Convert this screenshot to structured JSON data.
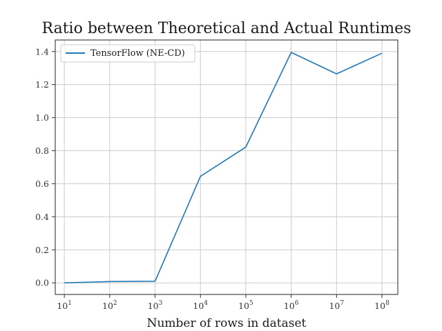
{
  "chart_data": {
    "type": "line",
    "title": "Ratio between Theoretical and Actual Runtimes",
    "xlabel": "Number of rows in dataset",
    "ylabel": "",
    "x_scale": "log",
    "x": [
      10,
      100,
      1000,
      10000,
      100000,
      1000000,
      10000000,
      100000000
    ],
    "x_tick_labels": [
      {
        "base": "10",
        "exp": "1"
      },
      {
        "base": "10",
        "exp": "2"
      },
      {
        "base": "10",
        "exp": "3"
      },
      {
        "base": "10",
        "exp": "4"
      },
      {
        "base": "10",
        "exp": "5"
      },
      {
        "base": "10",
        "exp": "6"
      },
      {
        "base": "10",
        "exp": "7"
      },
      {
        "base": "10",
        "exp": "8"
      }
    ],
    "y_ticks": [
      "0.0",
      "0.2",
      "0.4",
      "0.6",
      "0.8",
      "1.0",
      "1.2",
      "1.4"
    ],
    "ylim": [
      -0.07,
      1.47
    ],
    "grid": true,
    "legend_position": "top-left",
    "series": [
      {
        "name": "TensorFlow (NE-CD)",
        "color": "#1f77b4",
        "values": [
          0.0,
          0.008,
          0.01,
          0.645,
          0.822,
          1.395,
          1.265,
          1.39
        ]
      }
    ]
  }
}
